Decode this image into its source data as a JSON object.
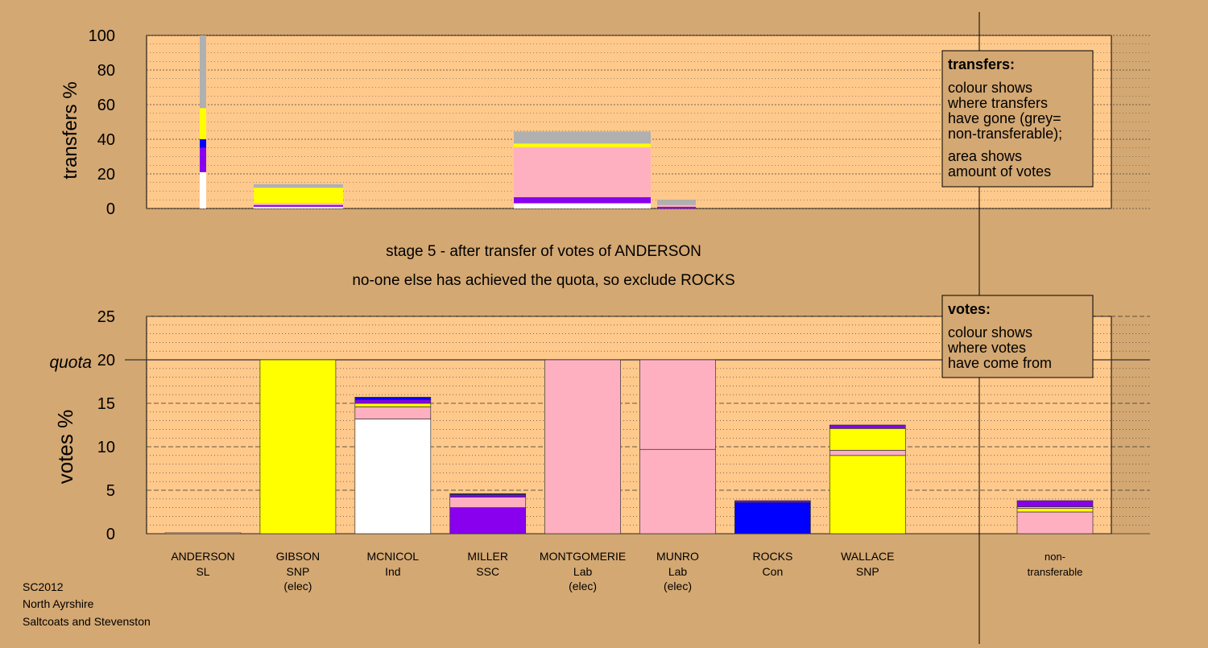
{
  "colors": {
    "background": "#d4a872",
    "plot": "#ffc98c",
    "grey": "#b0b0b0",
    "snp": "#ffff00",
    "con": "#0000ff",
    "ssc": "#8800ee",
    "ind": "#ffffff",
    "lab": "#ffb0c0"
  },
  "stage_text": {
    "line1": "stage 5 - after transfer of votes of ANDERSON",
    "line2": "no-one else has achieved the quota, so exclude ROCKS"
  },
  "footer": {
    "line1": "SC2012",
    "line2": "North Ayrshire",
    "line3": "Saltcoats and Stevenston"
  },
  "legend_transfers": {
    "title": "transfers:",
    "line1": "colour shows",
    "line2": "where transfers",
    "line3": "have gone (grey=",
    "line4": "non-transferable);",
    "line5": "area shows",
    "line6": "amount of votes"
  },
  "legend_votes": {
    "title": "votes:",
    "line1": "colour shows",
    "line2": "where votes",
    "line3": "have come from"
  },
  "chart_data": [
    {
      "type": "bar",
      "ylabel": "transfers %",
      "ylim": [
        0,
        100
      ],
      "yticks": [
        0,
        20,
        40,
        60,
        80,
        100
      ],
      "bars": [
        {
          "candidate": "ANDERSON",
          "segments": [
            {
              "color": "ind",
              "value": 21
            },
            {
              "color": "ssc",
              "value": 14
            },
            {
              "color": "con",
              "value": 5
            },
            {
              "color": "snp",
              "value": 18
            },
            {
              "color": "grey",
              "value": 42
            }
          ]
        },
        {
          "candidate": "GIBSON",
          "segments": [
            {
              "color": "ind",
              "value": 1
            },
            {
              "color": "ssc",
              "value": 1
            },
            {
              "color": "lab",
              "value": 1
            },
            {
              "color": "snp",
              "value": 9
            },
            {
              "color": "grey",
              "value": 2
            }
          ]
        },
        {
          "candidate": "MONTGOMERIE",
          "segments": [
            {
              "color": "ind",
              "value": 3
            },
            {
              "color": "ssc",
              "value": 3.5
            },
            {
              "color": "lab",
              "value": 29
            },
            {
              "color": "snp",
              "value": 2
            },
            {
              "color": "grey",
              "value": 7
            }
          ]
        },
        {
          "candidate": "MUNRO",
          "segments": [
            {
              "color": "ssc",
              "value": 1
            },
            {
              "color": "lab",
              "value": 1
            },
            {
              "color": "grey",
              "value": 3
            }
          ]
        }
      ]
    },
    {
      "type": "bar",
      "ylabel": "votes %",
      "ylim": [
        0,
        25
      ],
      "yticks": [
        0,
        5,
        10,
        15,
        20,
        25
      ],
      "quota": 20,
      "quota_label": "quota",
      "categories": [
        {
          "name": "ANDERSON",
          "party": "SL",
          "note": ""
        },
        {
          "name": "GIBSON",
          "party": "SNP",
          "note": "(elec)"
        },
        {
          "name": "MCNICOL",
          "party": "Ind",
          "note": ""
        },
        {
          "name": "MILLER",
          "party": "SSC",
          "note": ""
        },
        {
          "name": "MONTGOMERIE",
          "party": "Lab",
          "note": "(elec)"
        },
        {
          "name": "MUNRO",
          "party": "Lab",
          "note": "(elec)"
        },
        {
          "name": "ROCKS",
          "party": "Con",
          "note": ""
        },
        {
          "name": "WALLACE",
          "party": "SNP",
          "note": ""
        },
        {
          "name": "non-",
          "party": "transferable",
          "note": ""
        }
      ],
      "bars": [
        {
          "candidate": "ANDERSON",
          "segments": [
            {
              "color": "ind",
              "value": 0.1
            }
          ]
        },
        {
          "candidate": "GIBSON",
          "segments": [
            {
              "color": "snp",
              "value": 20
            }
          ]
        },
        {
          "candidate": "MCNICOL",
          "segments": [
            {
              "color": "ind",
              "value": 13.2
            },
            {
              "color": "lab",
              "value": 1.4
            },
            {
              "color": "snp",
              "value": 0.4
            },
            {
              "color": "ssc",
              "value": 0.4
            },
            {
              "color": "con",
              "value": 0.3
            }
          ]
        },
        {
          "candidate": "MILLER",
          "segments": [
            {
              "color": "ssc",
              "value": 3.0
            },
            {
              "color": "lab",
              "value": 1.2
            },
            {
              "color": "ssc",
              "value": 0.3
            },
            {
              "color": "con",
              "value": 0.1
            }
          ]
        },
        {
          "candidate": "MONTGOMERIE",
          "segments": [
            {
              "color": "lab",
              "value": 20
            }
          ]
        },
        {
          "candidate": "MUNRO",
          "segments": [
            {
              "color": "lab",
              "value": 9.7
            },
            {
              "color": "lab",
              "value": 10.3
            }
          ]
        },
        {
          "candidate": "ROCKS",
          "segments": [
            {
              "color": "con",
              "value": 3.6
            },
            {
              "color": "ssc",
              "value": 0.2
            }
          ]
        },
        {
          "candidate": "WALLACE",
          "segments": [
            {
              "color": "snp",
              "value": 9.0
            },
            {
              "color": "lab",
              "value": 0.6
            },
            {
              "color": "snp",
              "value": 2.5
            },
            {
              "color": "ssc",
              "value": 0.4
            }
          ]
        },
        {
          "candidate": "non-transferable",
          "segments": [
            {
              "color": "lab",
              "value": 2.5
            },
            {
              "color": "snp",
              "value": 0.4
            },
            {
              "color": "lab",
              "value": 0.2
            },
            {
              "color": "ssc",
              "value": 0.7
            }
          ]
        }
      ]
    }
  ]
}
